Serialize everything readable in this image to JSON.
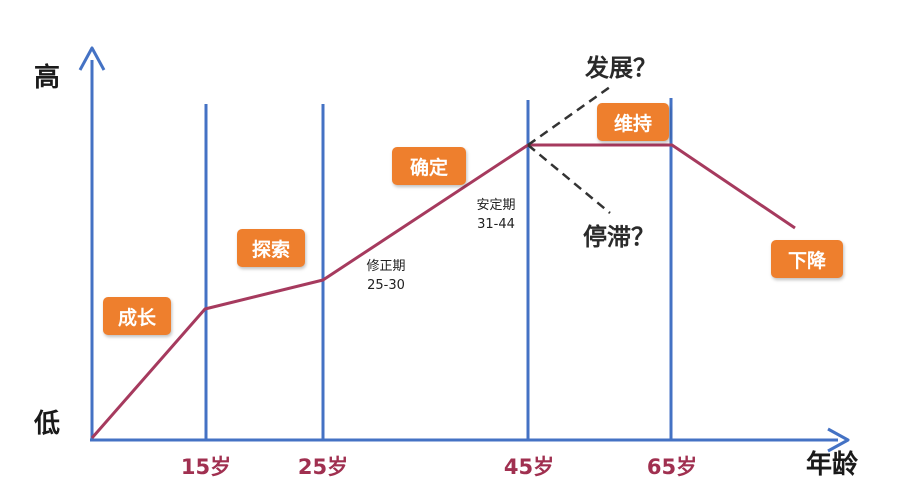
{
  "axes": {
    "y_high": "高",
    "y_low": "低",
    "x_label": "年龄"
  },
  "ages": [
    "15岁",
    "25岁",
    "45岁",
    "65岁"
  ],
  "stages": {
    "growth": "成长",
    "explore": "探索",
    "establish": "确定",
    "maintain": "维持",
    "decline": "下降"
  },
  "phases": {
    "correction_name": "修正期",
    "correction_range": "25-30",
    "stable_name": "安定期",
    "stable_range": "31-44"
  },
  "questions": {
    "develop": "发展？",
    "stagnate": "停滞？"
  },
  "colors": {
    "axis": "#4472c4",
    "curve": "#a63a5e",
    "stage_box": "#ee7f2d",
    "age_text": "#a03050"
  }
}
